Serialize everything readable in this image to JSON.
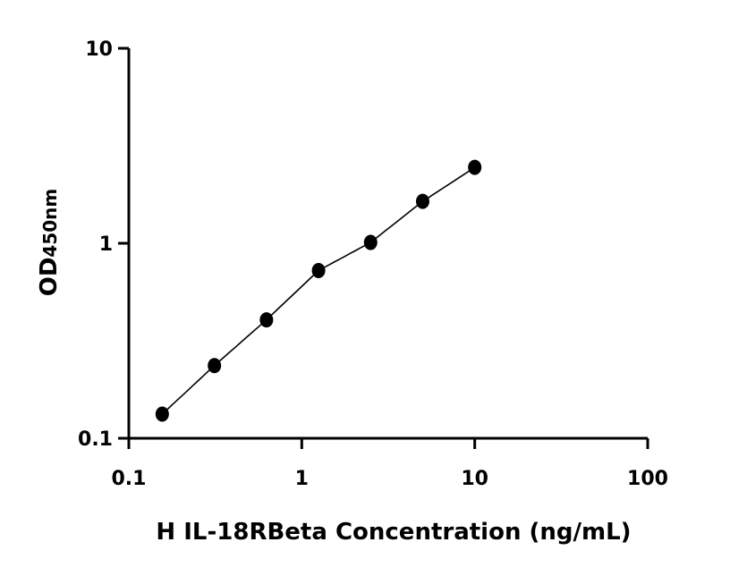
{
  "chart_data": {
    "type": "scatter",
    "xlabel": "H IL-18RBeta Concentration (ng/mL)",
    "ylabel": {
      "main": "OD",
      "subscript": "450nm"
    },
    "x_scale": "log",
    "y_scale": "log",
    "xlim": [
      0.1,
      100
    ],
    "ylim": [
      0.1,
      10
    ],
    "x_ticks": [
      {
        "value": 0.1,
        "label": "0.1"
      },
      {
        "value": 1,
        "label": "1"
      },
      {
        "value": 10,
        "label": "10"
      },
      {
        "value": 100,
        "label": "100"
      }
    ],
    "y_ticks": [
      {
        "value": 0.1,
        "label": "0.1"
      },
      {
        "value": 1,
        "label": "1"
      },
      {
        "value": 10,
        "label": "10"
      }
    ],
    "grid": false,
    "series": [
      {
        "points": [
          {
            "x": 0.156,
            "y": 0.133
          },
          {
            "x": 0.3125,
            "y": 0.236
          },
          {
            "x": 0.625,
            "y": 0.405
          },
          {
            "x": 1.25,
            "y": 0.725
          },
          {
            "x": 2.5,
            "y": 1.01
          },
          {
            "x": 5,
            "y": 1.64
          },
          {
            "x": 10,
            "y": 2.45
          }
        ],
        "fit_curve": true,
        "color": "#000000"
      }
    ]
  }
}
